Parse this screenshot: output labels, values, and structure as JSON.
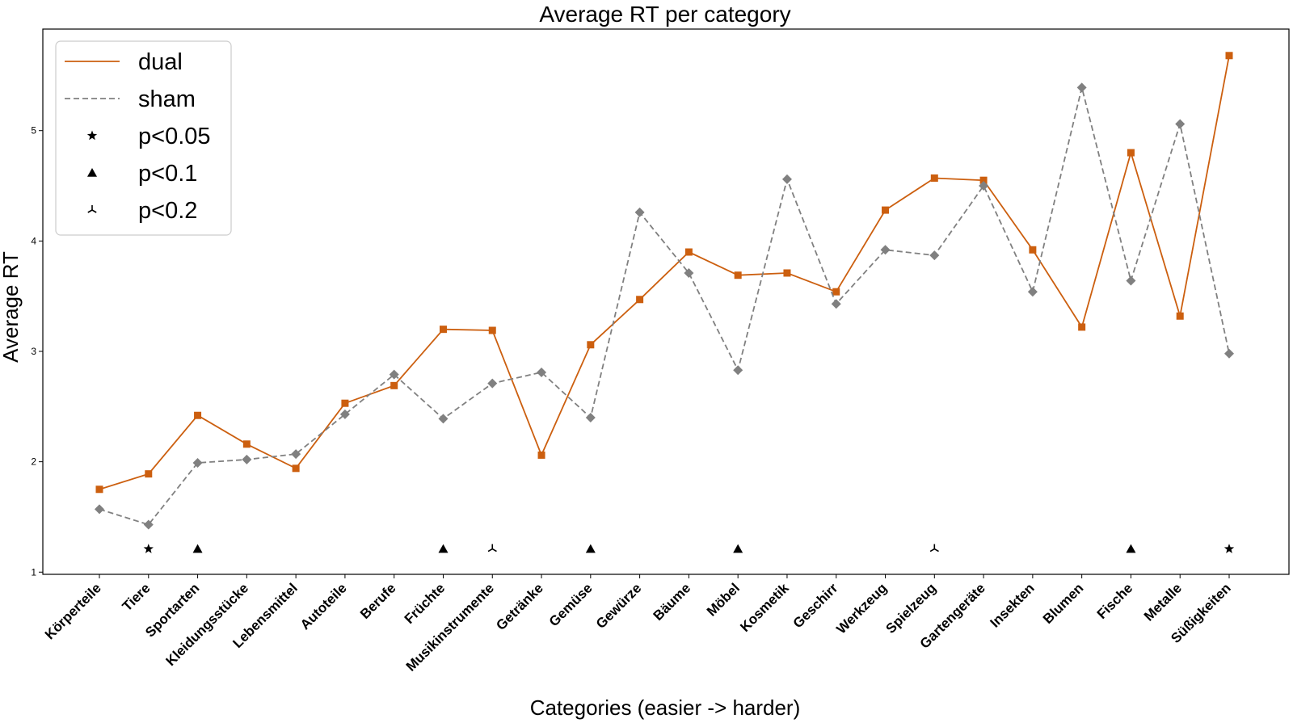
{
  "chart_data": {
    "type": "line",
    "title": "Average RT per category",
    "xlabel": "Categories (easier -> harder)",
    "ylabel": "Average RT",
    "ylim": [
      0.98,
      5.92
    ],
    "yticks": [
      1,
      2,
      3,
      4,
      5
    ],
    "grid": false,
    "legend_position": "top-left",
    "categories": [
      "Körperteile",
      "Tiere",
      "Sportarten",
      "Kleidungsstücke",
      "Lebensmittel",
      "Autoteile",
      "Berufe",
      "Früchte",
      "Musikinstrumente",
      "Getränke",
      "Gemüse",
      "Gewürze",
      "Bäume",
      "Möbel",
      "Kosmetik",
      "Geschirr",
      "Werkzeug",
      "Spielzeug",
      "Gartengeräte",
      "Insekten",
      "Blumen",
      "Fische",
      "Metalle",
      "Süßigkeiten"
    ],
    "series": [
      {
        "name": "dual",
        "color": "#cc5f0f",
        "line_style": "solid",
        "marker": "square",
        "values": [
          1.75,
          1.89,
          2.42,
          2.16,
          1.94,
          2.53,
          2.69,
          3.2,
          3.19,
          2.06,
          3.06,
          3.47,
          3.9,
          3.69,
          3.71,
          3.54,
          4.28,
          4.57,
          4.55,
          3.92,
          3.22,
          4.8,
          3.32,
          5.68
        ]
      },
      {
        "name": "sham",
        "color": "#808080",
        "line_style": "dashed",
        "marker": "diamond",
        "values": [
          1.57,
          1.43,
          1.99,
          2.02,
          2.07,
          2.43,
          2.79,
          2.39,
          2.71,
          2.81,
          2.4,
          4.26,
          3.71,
          2.83,
          4.56,
          3.43,
          3.92,
          3.87,
          4.5,
          3.54,
          5.39,
          3.64,
          5.06,
          2.98
        ]
      }
    ],
    "significance": {
      "y": 1.21,
      "markers": [
        {
          "category": "Tiere",
          "level": "p<0.05"
        },
        {
          "category": "Sportarten",
          "level": "p<0.1"
        },
        {
          "category": "Früchte",
          "level": "p<0.1"
        },
        {
          "category": "Musikinstrumente",
          "level": "p<0.2"
        },
        {
          "category": "Gemüse",
          "level": "p<0.1"
        },
        {
          "category": "Möbel",
          "level": "p<0.1"
        },
        {
          "category": "Spielzeug",
          "level": "p<0.2"
        },
        {
          "category": "Fische",
          "level": "p<0.1"
        },
        {
          "category": "Süßigkeiten",
          "level": "p<0.05"
        }
      ]
    },
    "legend": [
      {
        "label": "dual",
        "kind": "line-solid",
        "color": "#cc5f0f"
      },
      {
        "label": "sham",
        "kind": "line-dashed",
        "color": "#808080"
      },
      {
        "label": "p<0.05",
        "kind": "star",
        "color": "#000000"
      },
      {
        "label": "p<0.1",
        "kind": "triangle",
        "color": "#000000"
      },
      {
        "label": "p<0.2",
        "kind": "tri-down",
        "color": "#000000"
      }
    ]
  }
}
